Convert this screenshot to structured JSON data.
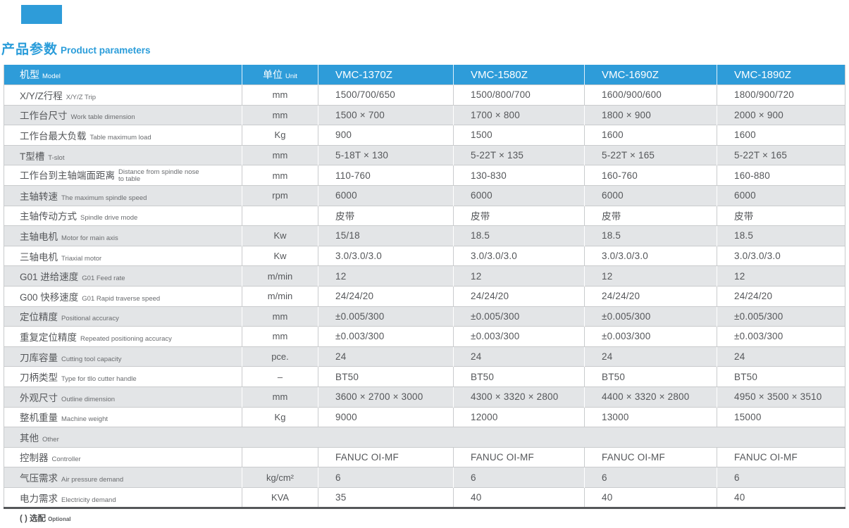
{
  "page": {
    "title_zh": "产品参数",
    "title_en": "Product parameters",
    "footnote_zh": "( ) 选配",
    "footnote_en": "Optional",
    "accent_color": "#2e9cd9",
    "row_alt_color": "#e3e5e7"
  },
  "table": {
    "header": {
      "model_zh": "机型",
      "model_en": "Model",
      "unit_zh": "单位",
      "unit_en": "Unit",
      "models": [
        "VMC-1370Z",
        "VMC-1580Z",
        "VMC-1690Z",
        "VMC-1890Z"
      ]
    },
    "rows": [
      {
        "zh": "X/Y/Z行程",
        "en": "X/Y/Z Trip",
        "unit": "mm",
        "values": [
          "1500/700/650",
          "1500/800/700",
          "1600/900/600",
          "1800/900/720"
        ]
      },
      {
        "zh": "工作台尺寸",
        "en": "Work table dimension",
        "unit": "mm",
        "values": [
          "1500 × 700",
          "1700 × 800",
          "1800 × 900",
          "2000 × 900"
        ]
      },
      {
        "zh": "工作台最大负载",
        "en": "Table maximum load",
        "unit": "Kg",
        "values": [
          "900",
          "1500",
          "1600",
          "1600"
        ]
      },
      {
        "zh": "T型槽",
        "en": "T-slot",
        "unit": "mm",
        "values": [
          "5-18T × 130",
          "5-22T × 135",
          "5-22T × 165",
          "5-22T × 165"
        ]
      },
      {
        "zh": "工作台到主轴端面距离",
        "en": "Distance from spindle nose to table",
        "unit": "mm",
        "values": [
          "110-760",
          "130-830",
          "160-760",
          "160-880"
        ]
      },
      {
        "zh": "主轴转速",
        "en": "The maximum spindle speed",
        "unit": "rpm",
        "values": [
          "6000",
          "6000",
          "6000",
          "6000"
        ]
      },
      {
        "zh": "主轴传动方式",
        "en": "Spindle drive mode",
        "unit": "",
        "values": [
          "皮带",
          "皮带",
          "皮带",
          "皮带"
        ]
      },
      {
        "zh": "主轴电机",
        "en": "Motor for main axis",
        "unit": "Kw",
        "values": [
          "15/18",
          "18.5",
          "18.5",
          "18.5"
        ]
      },
      {
        "zh": "三轴电机",
        "en": "Triaxial motor",
        "unit": "Kw",
        "values": [
          "3.0/3.0/3.0",
          "3.0/3.0/3.0",
          "3.0/3.0/3.0",
          "3.0/3.0/3.0"
        ]
      },
      {
        "zh": "G01 进给速度",
        "en": "G01 Feed rate",
        "unit": "m/min",
        "values": [
          "12",
          "12",
          "12",
          "12"
        ]
      },
      {
        "zh": "G00 快移速度",
        "en": "G01 Rapid traverse speed",
        "unit": "m/min",
        "values": [
          "24/24/20",
          "24/24/20",
          "24/24/20",
          "24/24/20"
        ]
      },
      {
        "zh": "定位精度",
        "en": "Positional accuracy",
        "unit": "mm",
        "values": [
          "±0.005/300",
          "±0.005/300",
          "±0.005/300",
          "±0.005/300"
        ]
      },
      {
        "zh": "重复定位精度",
        "en": "Repeated positioning accuracy",
        "unit": "mm",
        "values": [
          "±0.003/300",
          "±0.003/300",
          "±0.003/300",
          "±0.003/300"
        ]
      },
      {
        "zh": "刀库容量",
        "en": "Cutting tool capacity",
        "unit": "pce.",
        "values": [
          "24",
          "24",
          "24",
          "24"
        ]
      },
      {
        "zh": "刀柄类型",
        "en": "Type for tllo cutter handle",
        "unit": "–",
        "values": [
          "BT50",
          "BT50",
          "BT50",
          "BT50"
        ]
      },
      {
        "zh": "外观尺寸",
        "en": "Outline dimension",
        "unit": "mm",
        "values": [
          "3600 × 2700 × 3000",
          "4300 × 3320 × 2800",
          "4400 × 3320 × 2800",
          "4950 × 3500 × 3510"
        ]
      },
      {
        "zh": "整机重量",
        "en": "Machine weight",
        "unit": "Kg",
        "values": [
          "9000",
          "12000",
          "13000",
          "15000"
        ]
      },
      {
        "zh": "其他",
        "en": "Other",
        "section": true
      },
      {
        "zh": "控制器",
        "en": "Controller",
        "unit": "",
        "values": [
          "FANUC OI-MF",
          "FANUC OI-MF",
          "FANUC OI-MF",
          "FANUC OI-MF"
        ]
      },
      {
        "zh": "气压需求",
        "en": "Air pressure demand",
        "unit": "kg/cm²",
        "values": [
          "6",
          "6",
          "6",
          "6"
        ]
      },
      {
        "zh": "电力需求",
        "en": "Electricity demand",
        "unit": "KVA",
        "values": [
          "35",
          "40",
          "40",
          "40"
        ]
      }
    ]
  }
}
